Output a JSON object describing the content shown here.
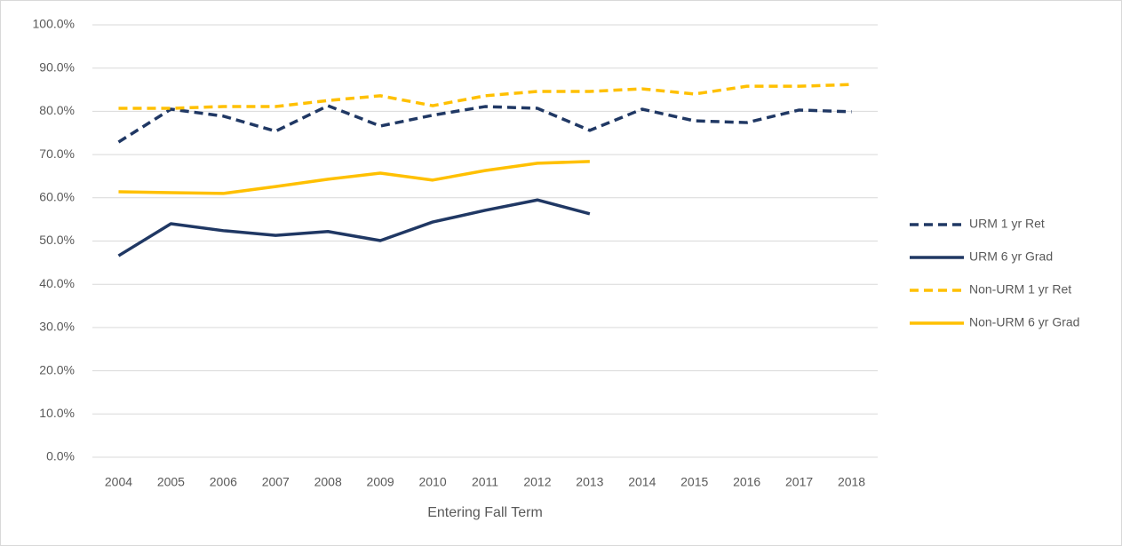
{
  "chart_data": {
    "type": "line",
    "x_label": "Entering Fall Term",
    "categories": [
      "2004",
      "2005",
      "2006",
      "2007",
      "2008",
      "2009",
      "2010",
      "2011",
      "2012",
      "2013",
      "2014",
      "2015",
      "2016",
      "2017",
      "2018"
    ],
    "series": [
      {
        "name": "URM 1 yr Ret",
        "color": "#203864",
        "line_style": "dashed",
        "values": [
          72.9,
          80.5,
          78.9,
          75.4,
          81.3,
          76.6,
          79.1,
          81.1,
          80.7,
          75.6,
          80.5,
          77.8,
          77.4,
          80.3,
          79.9
        ]
      },
      {
        "name": "URM 6 yr Grad",
        "color": "#203864",
        "line_style": "solid",
        "values": [
          46.6,
          54.0,
          52.4,
          51.3,
          52.2,
          50.1,
          54.4,
          57.1,
          59.5,
          56.3,
          null,
          null,
          null,
          null,
          null
        ]
      },
      {
        "name": "Non-URM 1 yr Ret",
        "color": "#ffc000",
        "line_style": "dashed",
        "values": [
          80.7,
          80.7,
          81.1,
          81.1,
          82.5,
          83.6,
          81.3,
          83.6,
          84.6,
          84.6,
          85.2,
          84.0,
          85.8,
          85.8,
          86.2
        ]
      },
      {
        "name": "Non-URM 6 yr Grad",
        "color": "#ffc000",
        "line_style": "solid",
        "values": [
          61.4,
          61.2,
          61.0,
          62.6,
          64.3,
          65.7,
          64.1,
          66.3,
          68.0,
          68.4,
          null,
          null,
          null,
          null,
          null
        ]
      }
    ],
    "ylim": [
      0,
      100
    ],
    "yticks": [
      {
        "value": 0,
        "label": "0.0%"
      },
      {
        "value": 10,
        "label": "10.0%"
      },
      {
        "value": 20,
        "label": "20.0%"
      },
      {
        "value": 30,
        "label": "30.0%"
      },
      {
        "value": 40,
        "label": "40.0%"
      },
      {
        "value": 50,
        "label": "50.0%"
      },
      {
        "value": 60,
        "label": "60.0%"
      },
      {
        "value": 70,
        "label": "70.0%"
      },
      {
        "value": 80,
        "label": "80.0%"
      },
      {
        "value": 90,
        "label": "90.0%"
      },
      {
        "value": 100,
        "label": "100.0%"
      }
    ],
    "grid": true,
    "legend": "right"
  }
}
